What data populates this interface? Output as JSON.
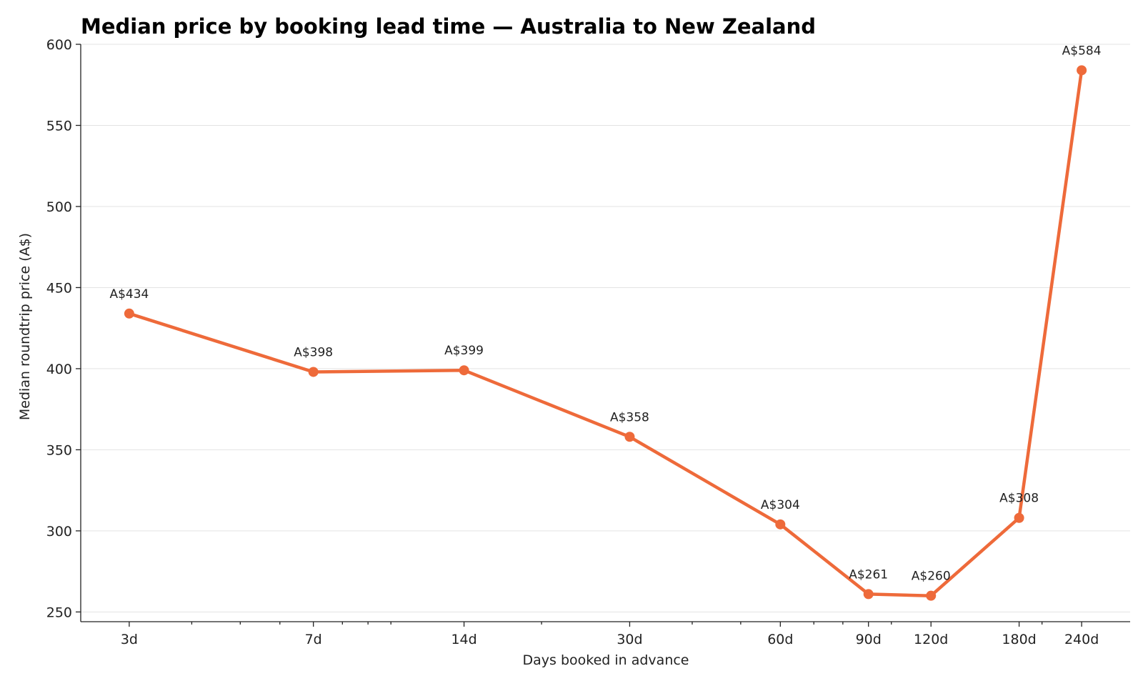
{
  "chart_data": {
    "type": "line",
    "title": "Median price by booking lead time — Australia to New Zealand",
    "xlabel": "Days booked in advance",
    "ylabel": "Median roundtrip price (A$)",
    "x_scale": "log",
    "x": [
      3,
      7,
      14,
      30,
      60,
      90,
      120,
      180,
      240
    ],
    "x_tick_labels": [
      "3d",
      "7d",
      "14d",
      "30d",
      "60d",
      "90d",
      "120d",
      "180d",
      "240d"
    ],
    "ylim": [
      244,
      600
    ],
    "y_ticks": [
      250,
      300,
      350,
      400,
      450,
      500,
      550,
      600
    ],
    "grid": "horizontal",
    "series": [
      {
        "values": [
          434,
          398,
          399,
          358,
          304,
          261,
          260,
          308,
          584
        ],
        "data_labels": [
          "A$434",
          "A$398",
          "A$399",
          "A$358",
          "A$304",
          "A$261",
          "A$260",
          "A$308",
          "A$584"
        ],
        "color": "#ee6a3a"
      }
    ]
  }
}
